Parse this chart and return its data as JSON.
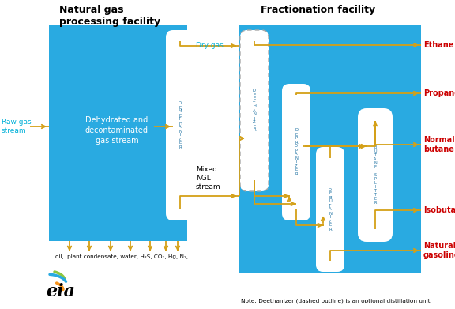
{
  "fig_width": 5.76,
  "fig_height": 3.91,
  "dpi": 100,
  "bg_color": "#ffffff",
  "title_left": "Natural gas\nprocessing facility",
  "title_right": "Fractionation facility",
  "blue_bg": "#29aae1",
  "arrow_color": "#d4a017",
  "text_cyan": "#00b0d8",
  "text_red": "#cc0000",
  "note_text": "Note: Deethanizer (dashed outline) is an optional distillation unit",
  "labels_bottom": "oil,  plant condensate, water, H₂S, CO₂, Hg, N₂, ...",
  "raw_gas": "Raw gas\nstream",
  "dehydrated": "Dehydrated and\ndecontaminated\ngas stream",
  "dry_gas": "Dry gas",
  "mixed_ngl": "Mixed\nNGL\nstream",
  "ethane": "Ethane",
  "propane": "Propane",
  "normal_butane": "Normal\nbutane",
  "isobutane": "Isobutane",
  "natural_gasoline": "Natural\ngasoline"
}
